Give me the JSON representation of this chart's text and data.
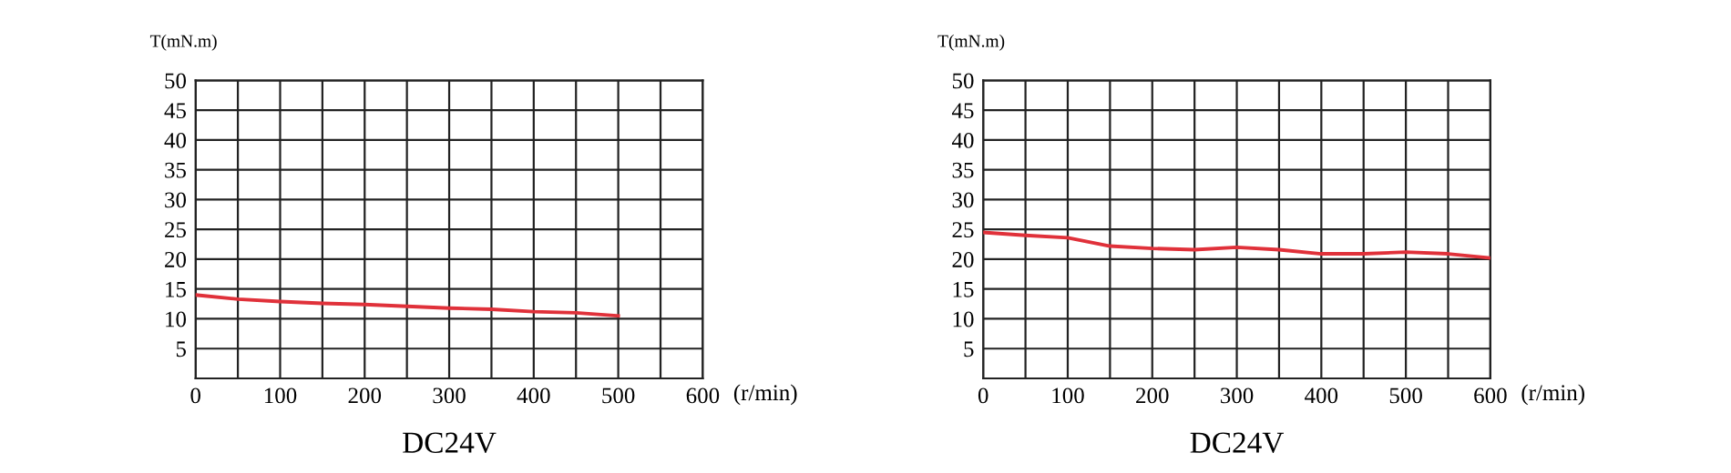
{
  "chart_data": [
    {
      "type": "line",
      "title": "DC24V",
      "xlabel": "(r/min)",
      "ylabel": "T(mN.m)",
      "x": [
        0,
        50,
        100,
        150,
        200,
        250,
        300,
        350,
        400,
        450,
        500
      ],
      "series": [
        {
          "color": "#e0313a",
          "values": [
            14,
            13.3,
            12.9,
            12.6,
            12.4,
            12.1,
            11.8,
            11.6,
            11.2,
            11.0,
            10.5
          ]
        }
      ],
      "xlim": [
        0,
        600
      ],
      "ylim": [
        0,
        50
      ],
      "xticks": [
        0,
        {
          "value": 50,
          "label": null
        },
        100,
        {
          "value": 150,
          "label": null
        },
        200,
        {
          "value": 250,
          "label": null
        },
        300,
        {
          "value": 350,
          "label": null
        },
        400,
        {
          "value": 450,
          "label": null
        },
        500,
        {
          "value": 550,
          "label": null
        },
        600
      ],
      "yticks": [
        {
          "value": 0,
          "label": null
        },
        5,
        10,
        15,
        20,
        25,
        30,
        35,
        40,
        45,
        50
      ],
      "grid": true,
      "marker": "none",
      "line_style": "solid"
    },
    {
      "type": "line",
      "title": "DC24V",
      "xlabel": "(r/min)",
      "ylabel": "T(mN.m)",
      "x": [
        0,
        50,
        100,
        150,
        200,
        250,
        300,
        350,
        400,
        450,
        500,
        550,
        600
      ],
      "series": [
        {
          "color": "#e0313a",
          "values": [
            24.5,
            24,
            23.6,
            22.2,
            21.8,
            21.6,
            22,
            21.6,
            20.9,
            20.9,
            21.2,
            20.9,
            20.2
          ]
        }
      ],
      "xlim": [
        0,
        600
      ],
      "ylim": [
        0,
        50
      ],
      "xticks": [
        0,
        {
          "value": 50,
          "label": null
        },
        100,
        {
          "value": 150,
          "label": null
        },
        200,
        {
          "value": 250,
          "label": null
        },
        300,
        {
          "value": 350,
          "label": null
        },
        400,
        {
          "value": 450,
          "label": null
        },
        500,
        {
          "value": 550,
          "label": null
        },
        600
      ],
      "yticks": [
        {
          "value": 0,
          "label": null
        },
        5,
        10,
        15,
        20,
        25,
        30,
        35,
        40,
        45,
        50
      ],
      "grid": true,
      "marker": "none",
      "line_style": "solid"
    }
  ]
}
